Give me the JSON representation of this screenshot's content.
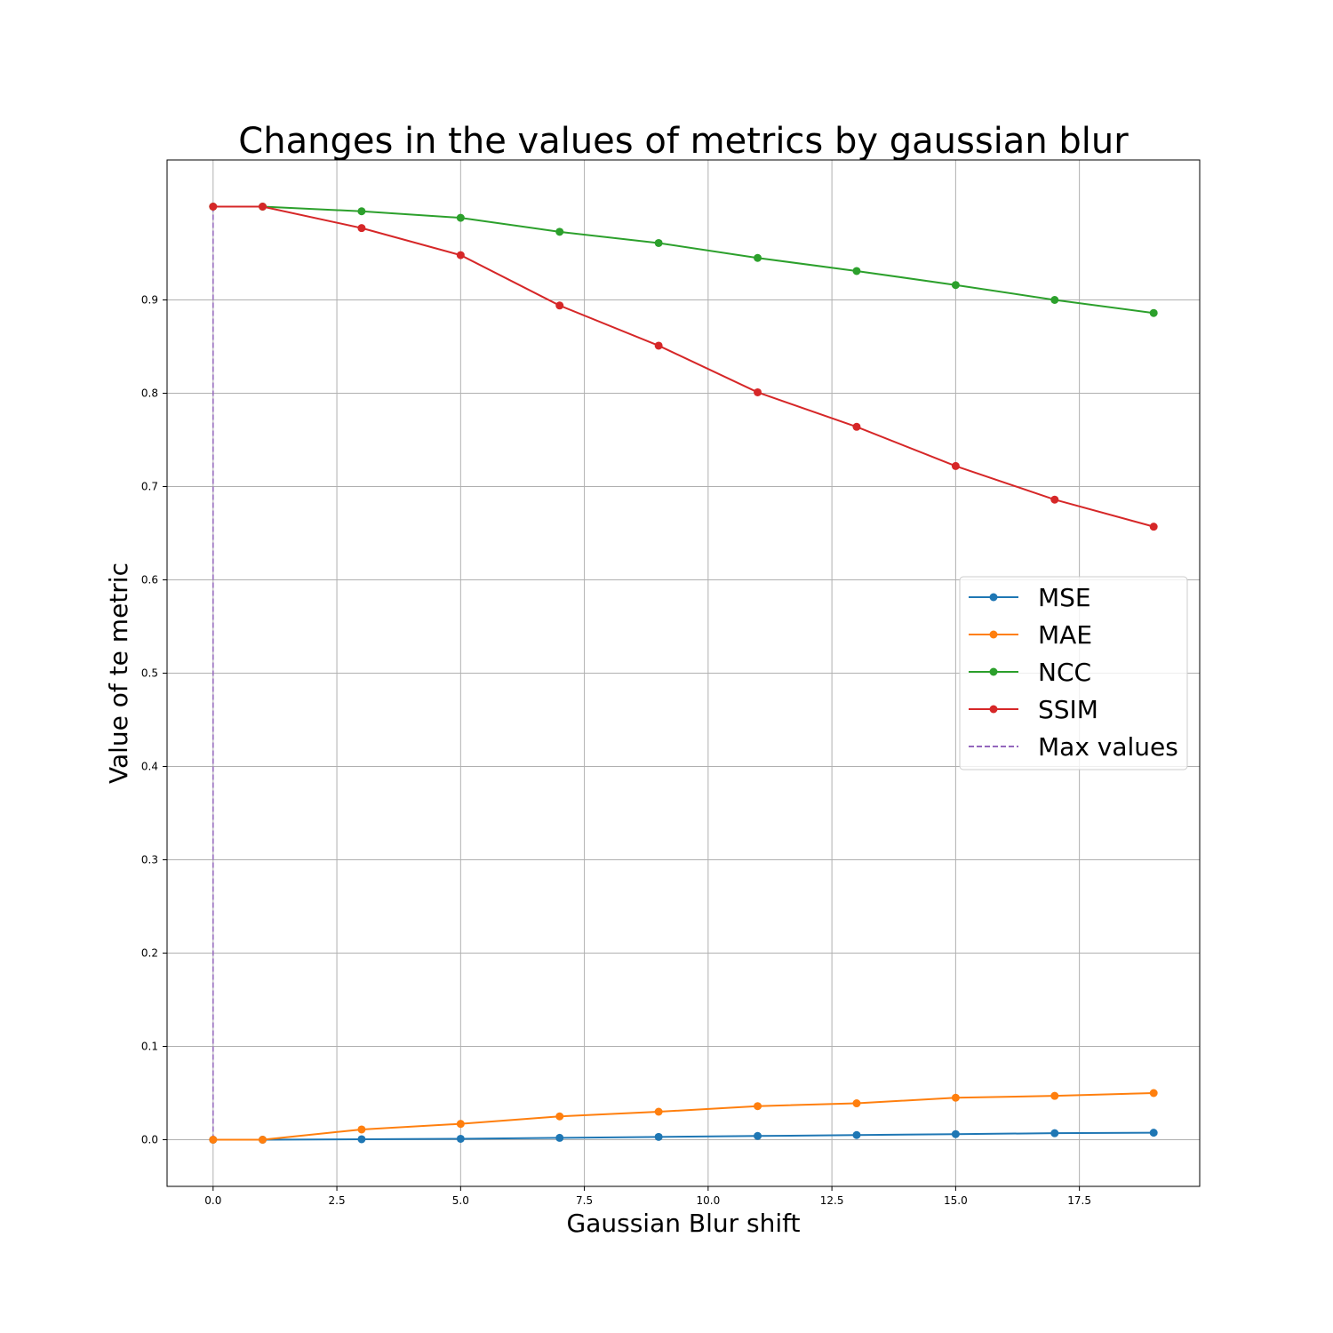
{
  "chart_data": {
    "type": "line",
    "title": "Changes in the values of metrics by gaussian blur",
    "xlabel": "Gaussian Blur shift",
    "ylabel": "Value of te metric",
    "xlim": [
      -0.93,
      19.93
    ],
    "ylim": [
      -0.05,
      1.05
    ],
    "xticks": [
      0.0,
      2.5,
      5.0,
      7.5,
      10.0,
      12.5,
      15.0,
      17.5
    ],
    "xtick_labels": [
      "0.0",
      "2.5",
      "5.0",
      "7.5",
      "10.0",
      "12.5",
      "15.0",
      "17.5"
    ],
    "yticks": [
      0.0,
      0.1,
      0.2,
      0.3,
      0.4,
      0.5,
      0.6,
      0.7,
      0.8,
      0.9
    ],
    "ytick_labels": [
      "0.0",
      "0.1",
      "0.2",
      "0.3",
      "0.4",
      "0.5",
      "0.6",
      "0.7",
      "0.8",
      "0.9"
    ],
    "grid": true,
    "legend_position": "center-right",
    "x": [
      0,
      1,
      3,
      5,
      7,
      9,
      11,
      13,
      15,
      17,
      19
    ],
    "series": [
      {
        "name": "MSE",
        "color": "#1f77b4",
        "marker": "circle",
        "values": [
          0.0,
          0.0,
          0.0005,
          0.001,
          0.002,
          0.003,
          0.004,
          0.005,
          0.006,
          0.007,
          0.0075
        ]
      },
      {
        "name": "MAE",
        "color": "#ff7f0e",
        "marker": "circle",
        "values": [
          0.0,
          0.0,
          0.011,
          0.017,
          0.025,
          0.03,
          0.036,
          0.039,
          0.045,
          0.047,
          0.05
        ]
      },
      {
        "name": "NCC",
        "color": "#2ca02c",
        "marker": "circle",
        "values": [
          1.0,
          1.0,
          0.995,
          0.988,
          0.973,
          0.961,
          0.945,
          0.931,
          0.916,
          0.9,
          0.886
        ]
      },
      {
        "name": "SSIM",
        "color": "#d62728",
        "marker": "circle",
        "values": [
          1.0,
          1.0,
          0.977,
          0.948,
          0.894,
          0.851,
          0.801,
          0.764,
          0.722,
          0.686,
          0.657
        ]
      }
    ],
    "max_line": {
      "name": "Max values",
      "color": "#9467bd",
      "style": "dashed",
      "x": 0,
      "y_from": 0.0,
      "y_to": 1.0
    }
  }
}
